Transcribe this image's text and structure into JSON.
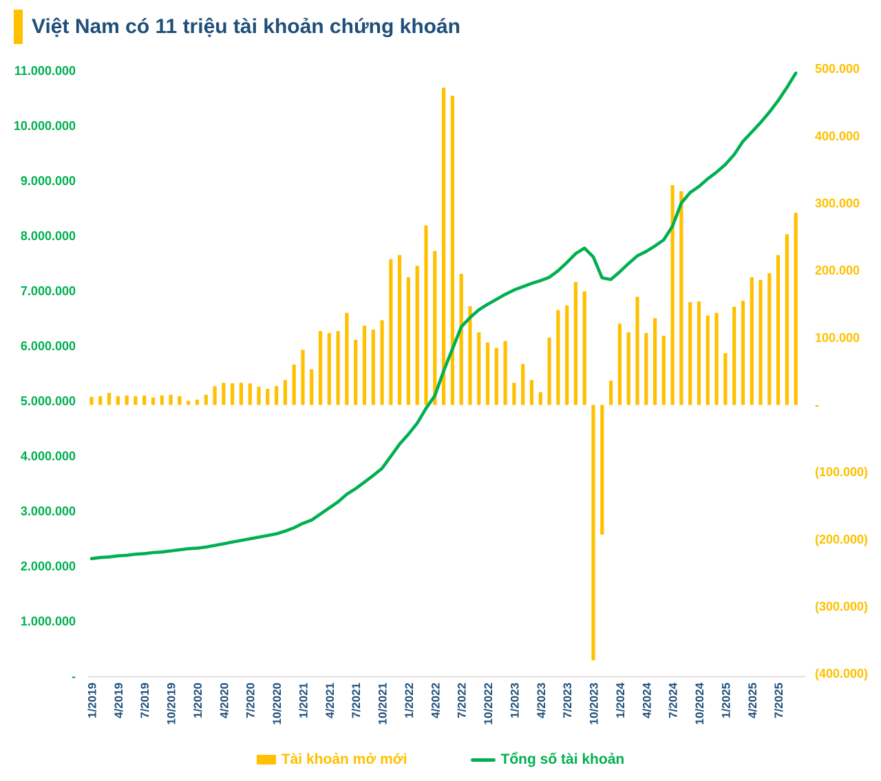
{
  "title": {
    "text": "Việt Nam có 11 triệu tài khoản chứng khoán"
  },
  "legend": [
    {
      "label": "Tài khoản mở mới",
      "color": "#FFC000",
      "type": "bar"
    },
    {
      "label": "Tổng số tài khoản",
      "color": "#00B050",
      "type": "line"
    }
  ],
  "colors": {
    "bar": "#FFC000",
    "line": "#00B050",
    "left_axis_labels": "#00B050",
    "right_axis_labels": "#FFC000",
    "x_axis_labels": "#1F4E79",
    "title": "#1F4E79",
    "title_accent": "#FFC000",
    "axis_line": "#D9D9D9"
  },
  "chart_data": {
    "type": "bar",
    "subtype": "combo-bar-line-dual-axis",
    "title": "Việt Nam có 11 triệu tài khoản chứng khoán",
    "x": [
      "1/2019",
      "2/2019",
      "3/2019",
      "4/2019",
      "5/2019",
      "6/2019",
      "7/2019",
      "8/2019",
      "9/2019",
      "10/2019",
      "11/2019",
      "12/2019",
      "1/2020",
      "2/2020",
      "3/2020",
      "4/2020",
      "5/2020",
      "6/2020",
      "7/2020",
      "8/2020",
      "9/2020",
      "10/2020",
      "11/2020",
      "12/2020",
      "1/2021",
      "2/2021",
      "3/2021",
      "4/2021",
      "5/2021",
      "6/2021",
      "7/2021",
      "8/2021",
      "9/2021",
      "10/2021",
      "11/2021",
      "12/2021",
      "1/2022",
      "2/2022",
      "3/2022",
      "4/2022",
      "5/2022",
      "6/2022",
      "7/2022",
      "8/2022",
      "9/2022",
      "10/2022",
      "11/2022",
      "12/2022",
      "1/2023",
      "2/2023",
      "3/2023",
      "4/2023",
      "5/2023",
      "6/2023",
      "7/2023",
      "8/2023",
      "9/2023",
      "10/2023",
      "11/2023",
      "12/2023",
      "1/2024",
      "2/2024",
      "3/2024",
      "4/2024",
      "5/2024",
      "6/2024",
      "7/2024",
      "8/2024",
      "9/2024",
      "10/2024",
      "11/2024",
      "12/2024",
      "1/2025",
      "2/2025",
      "3/2025",
      "4/2025",
      "5/2025",
      "6/2025",
      "7/2025",
      "8/2025",
      "9/2025"
    ],
    "x_tick_shown_every": 3,
    "series": [
      {
        "name": "Tài khoản mở mới",
        "type": "bar",
        "axis": "right",
        "unit": "accounts (thousands)",
        "values_thousands": [
          12,
          13,
          18,
          13,
          14,
          13,
          14,
          11,
          14,
          15,
          13,
          6,
          8,
          15,
          28,
          33,
          32,
          33,
          32,
          27,
          24,
          28,
          37,
          60,
          82,
          53,
          110,
          107,
          110,
          137,
          97,
          118,
          112,
          126,
          217,
          223,
          190,
          207,
          267,
          229,
          472,
          460,
          195,
          147,
          108,
          93,
          85,
          95,
          33,
          61,
          37,
          19,
          100,
          141,
          148,
          183,
          169,
          -380,
          -193,
          36,
          121,
          108,
          161,
          107,
          129,
          103,
          327,
          318,
          153,
          154,
          133,
          137,
          77,
          146,
          155,
          190,
          186,
          196,
          223,
          254,
          286
        ]
      },
      {
        "name": "Tổng số tài khoản",
        "type": "line",
        "axis": "left",
        "unit": "accounts (millions)",
        "values_millions": [
          2.14,
          2.16,
          2.17,
          2.19,
          2.2,
          2.22,
          2.23,
          2.25,
          2.26,
          2.28,
          2.3,
          2.32,
          2.33,
          2.35,
          2.38,
          2.41,
          2.44,
          2.47,
          2.5,
          2.53,
          2.56,
          2.59,
          2.64,
          2.7,
          2.78,
          2.84,
          2.95,
          3.06,
          3.17,
          3.31,
          3.41,
          3.53,
          3.65,
          3.78,
          4.0,
          4.22,
          4.4,
          4.6,
          4.87,
          5.1,
          5.55,
          5.95,
          6.35,
          6.52,
          6.66,
          6.76,
          6.85,
          6.94,
          7.02,
          7.08,
          7.14,
          7.19,
          7.25,
          7.37,
          7.52,
          7.68,
          7.78,
          7.62,
          7.24,
          7.21,
          7.35,
          7.5,
          7.64,
          7.72,
          7.82,
          7.93,
          8.18,
          8.6,
          8.79,
          8.9,
          9.04,
          9.16,
          9.3,
          9.48,
          9.72,
          9.89,
          10.06,
          10.25,
          10.46,
          10.7,
          10.96
        ]
      }
    ],
    "left_axis": {
      "min": 0,
      "max": 11000000,
      "ticks": [
        {
          "label": "11.000.000",
          "value_millions": 11
        },
        {
          "label": "10.000.000",
          "value_millions": 10
        },
        {
          "label": "9.000.000",
          "value_millions": 9
        },
        {
          "label": "8.000.000",
          "value_millions": 8
        },
        {
          "label": "7.000.000",
          "value_millions": 7
        },
        {
          "label": "6.000.000",
          "value_millions": 6
        },
        {
          "label": "5.000.000",
          "value_millions": 5
        },
        {
          "label": "4.000.000",
          "value_millions": 4
        },
        {
          "label": "3.000.000",
          "value_millions": 3
        },
        {
          "label": "2.000.000",
          "value_millions": 2
        },
        {
          "label": "1.000.000",
          "value_millions": 1
        },
        {
          "label": "-",
          "value_millions": 0
        }
      ]
    },
    "right_axis": {
      "min": -400000,
      "max": 500000,
      "ticks": [
        {
          "label": "500.000",
          "value_thousands": 500
        },
        {
          "label": "400.000",
          "value_thousands": 400
        },
        {
          "label": "300.000",
          "value_thousands": 300
        },
        {
          "label": "200.000",
          "value_thousands": 200
        },
        {
          "label": "100.000",
          "value_thousands": 100
        },
        {
          "label": "-",
          "value_thousands": 0
        },
        {
          "label": "(100.000)",
          "value_thousands": -100
        },
        {
          "label": "(200.000)",
          "value_thousands": -200
        },
        {
          "label": "(300.000)",
          "value_thousands": -300
        },
        {
          "label": "(400.000)",
          "value_thousands": -400
        }
      ]
    },
    "grid": false,
    "legend_position": "bottom"
  }
}
